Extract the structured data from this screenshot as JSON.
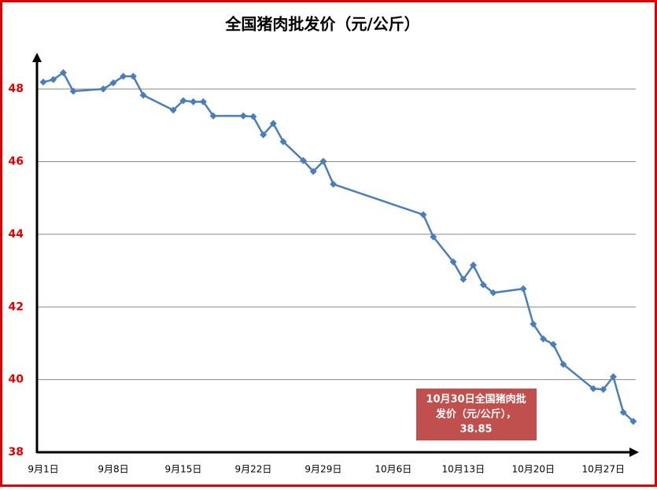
{
  "chart_data": {
    "type": "line",
    "title": "全国猪肉批发价（元/公斤）",
    "x": [
      "9月1日",
      "9月2日",
      "9月3日",
      "9月4日",
      "9月7日",
      "9月8日",
      "9月9日",
      "9月10日",
      "9月11日",
      "9月14日",
      "9月15日",
      "9月16日",
      "9月17日",
      "9月18日",
      "9月21日",
      "9月22日",
      "9月23日",
      "9月24日",
      "9月25日",
      "9月27日",
      "9月28日",
      "9月29日",
      "9月30日",
      "10月9日",
      "10月10日",
      "10月12日",
      "10月13日",
      "10月14日",
      "10月15日",
      "10月16日",
      "10月19日",
      "10月20日",
      "10月21日",
      "10月22日",
      "10月23日",
      "10月26日",
      "10月27日",
      "10月28日",
      "10月29日",
      "10月30日"
    ],
    "series": [
      {
        "color": "#4a7ebb",
        "values": [
          48.19,
          48.26,
          48.45,
          47.94,
          48.0,
          48.17,
          48.35,
          48.35,
          47.83,
          47.42,
          47.68,
          47.65,
          47.65,
          47.26,
          47.26,
          47.24,
          46.74,
          47.05,
          46.55,
          46.03,
          45.73,
          46.01,
          45.38,
          44.54,
          43.93,
          43.24,
          42.76,
          43.15,
          42.61,
          42.39,
          42.5,
          41.53,
          41.12,
          40.97,
          40.42,
          39.75,
          39.73,
          40.08,
          39.1,
          38.85
        ]
      }
    ],
    "ylim": [
      38,
      49
    ],
    "yticks": [
      38,
      40,
      42,
      44,
      46,
      48
    ],
    "grid": true,
    "xticks": [
      "9月1日",
      "9月8日",
      "9月15日",
      "9月22日",
      "9月29日",
      "10月6日",
      "10月13日",
      "10月20日",
      "10月27日"
    ],
    "annotation": [
      "10月30日全国猪肉批",
      "发价（元/公斤），",
      "38.85"
    ],
    "annotation_color": "#c0504d"
  }
}
